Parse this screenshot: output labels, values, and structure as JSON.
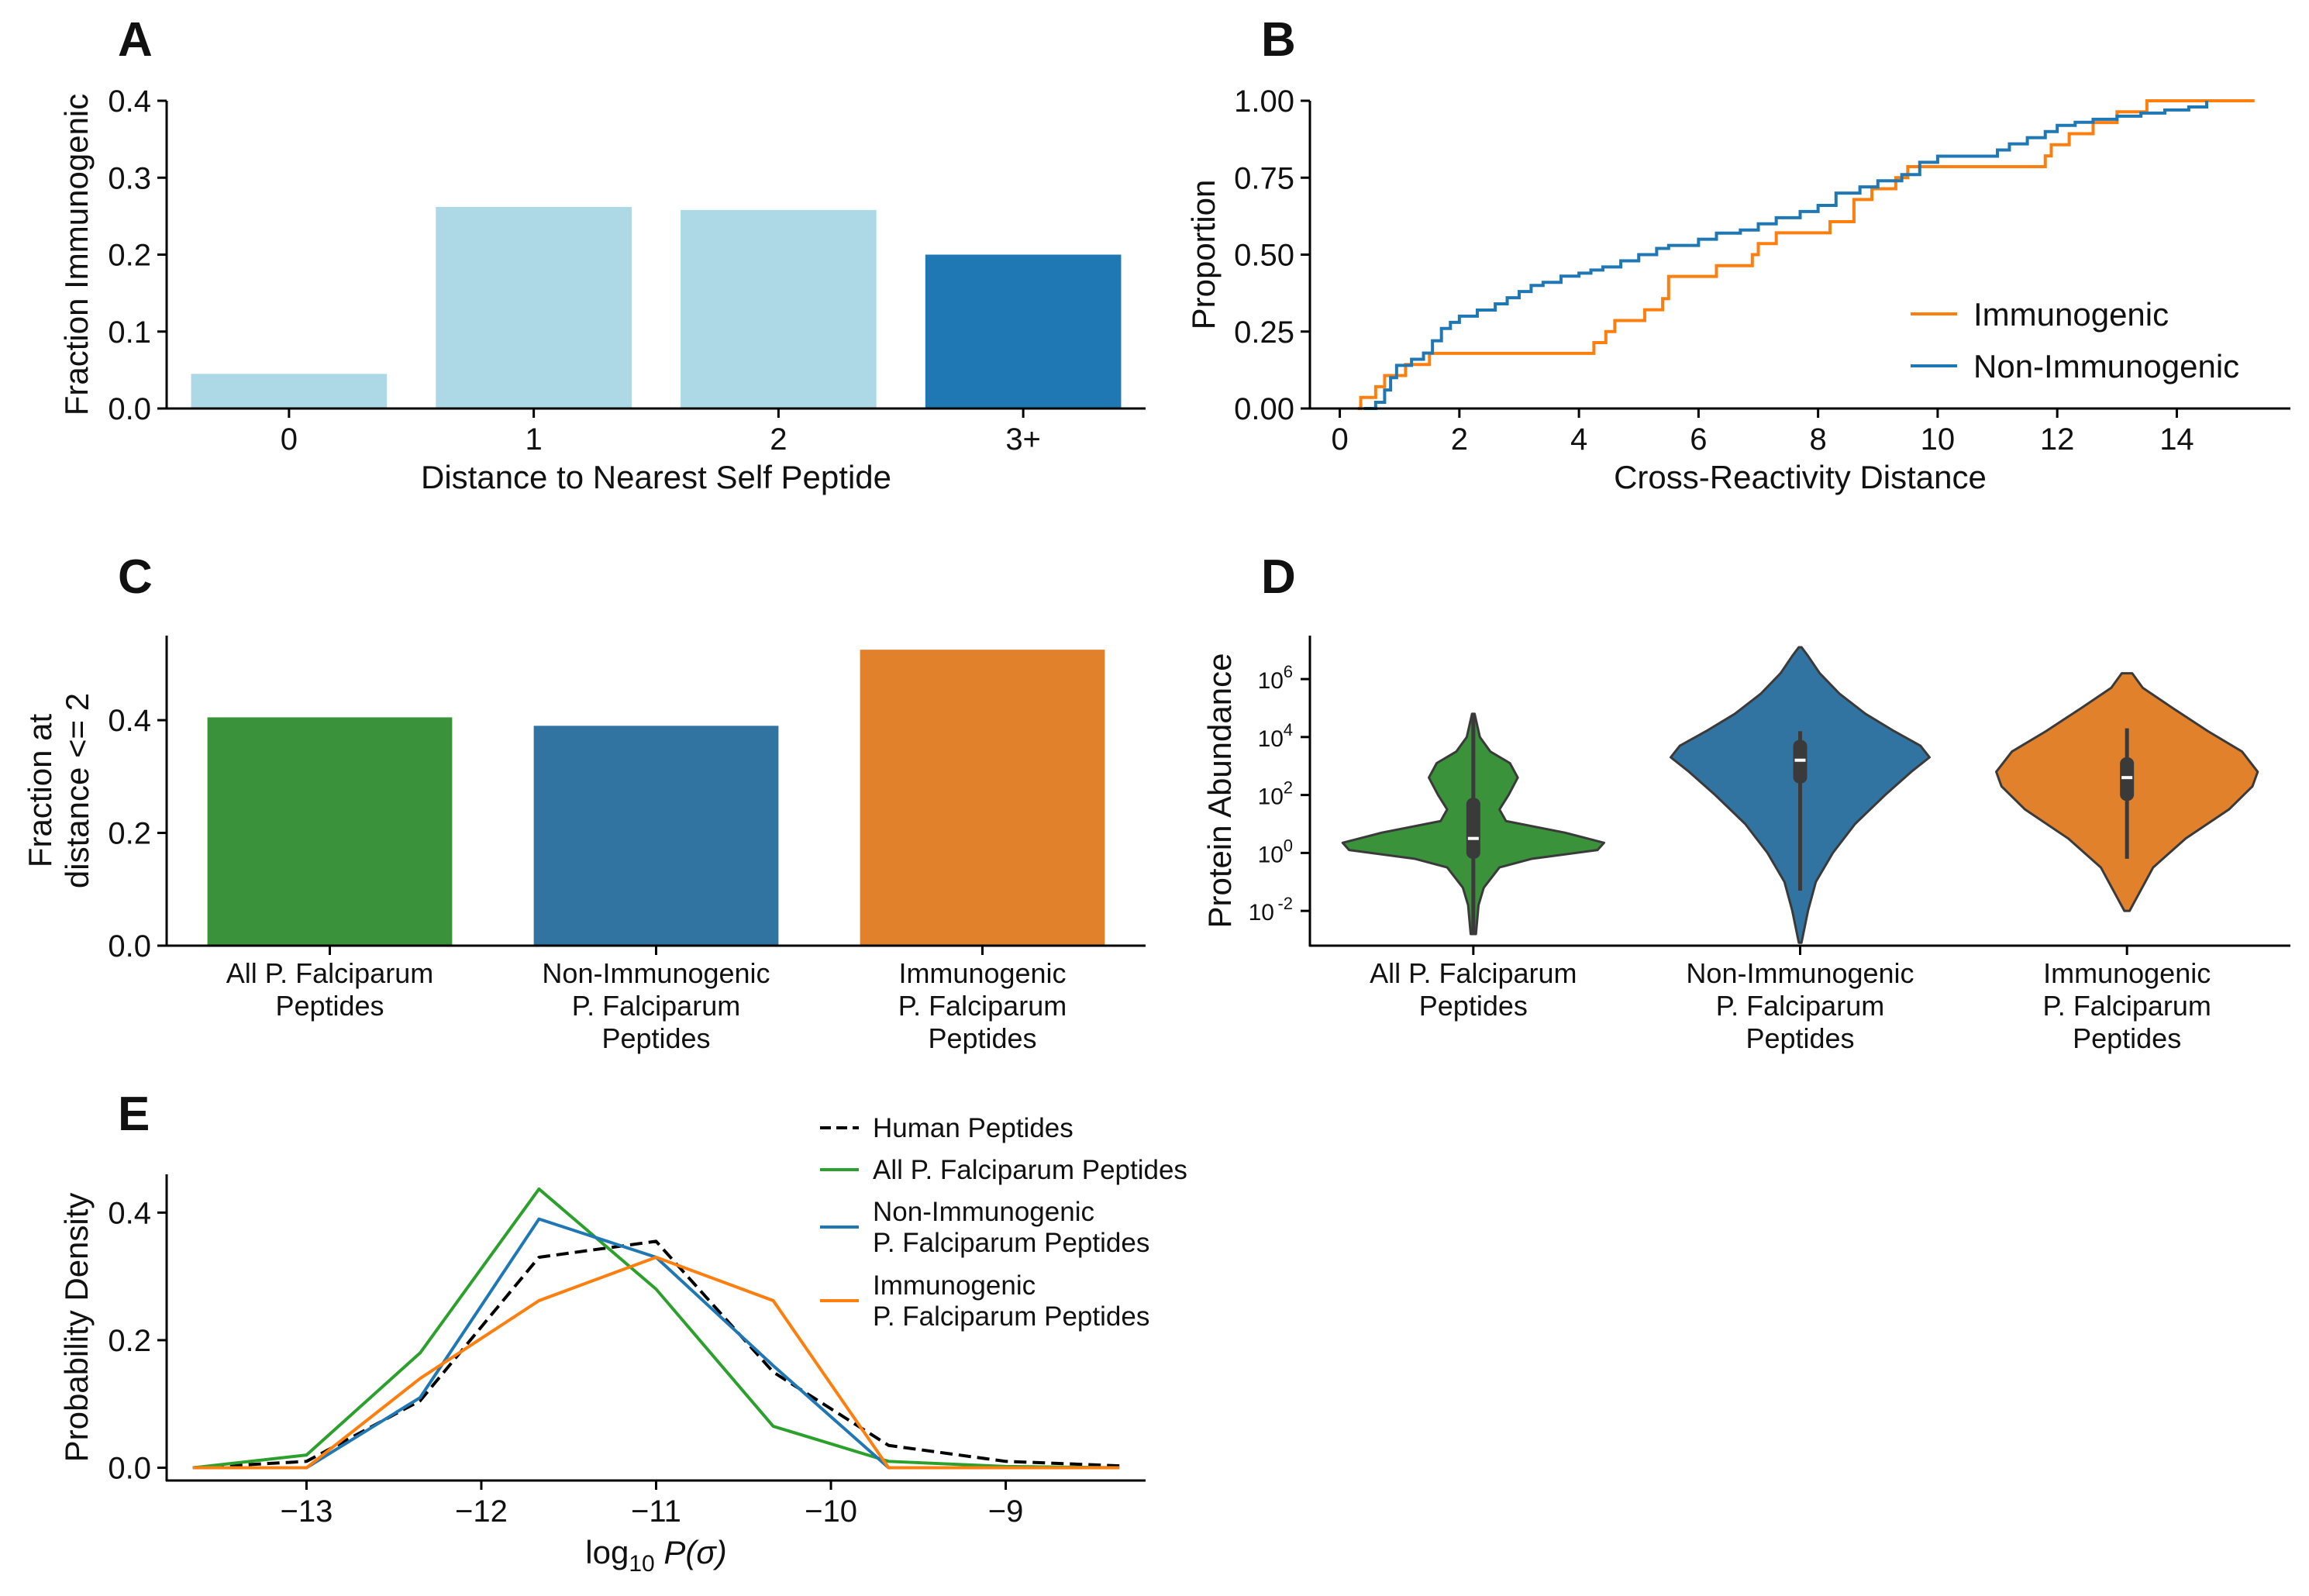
{
  "chart_data": [
    {
      "panel": "A",
      "type": "bar",
      "categories": [
        "0",
        "1",
        "2",
        "3+"
      ],
      "values": [
        0.045,
        0.262,
        0.258,
        0.2
      ],
      "colors": [
        "#add8e6",
        "#add8e6",
        "#add8e6",
        "#1f77b4"
      ],
      "xlabel": "Distance to Nearest Self Peptide",
      "ylabel": "Fraction Immunogenic",
      "ylim": [
        0,
        0.4
      ],
      "yticks": [
        0.0,
        0.1,
        0.2,
        0.3,
        0.4
      ],
      "ytick_labels": [
        "0.0",
        "0.1",
        "0.2",
        "0.3",
        "0.4"
      ]
    },
    {
      "panel": "B",
      "type": "line",
      "style": "step (empirical CDF)",
      "xlabel": "Cross-Reactivity Distance",
      "ylabel": "Proportion",
      "xlim": [
        -0.5,
        15.9
      ],
      "ylim": [
        0,
        1.0
      ],
      "xticks": [
        0,
        2,
        4,
        6,
        8,
        10,
        12,
        14
      ],
      "xtick_labels": [
        "0",
        "2",
        "4",
        "6",
        "8",
        "10",
        "12",
        "14"
      ],
      "yticks": [
        0.0,
        0.25,
        0.5,
        0.75,
        1.0
      ],
      "ytick_labels": [
        "0.00",
        "0.25",
        "0.50",
        "0.75",
        "1.00"
      ],
      "legend_position": "lower-right",
      "series": [
        {
          "name": "Immunogenic",
          "color": "#ff7f0e",
          "x": [
            0.3,
            0.35,
            0.6,
            0.75,
            1.1,
            1.5,
            4.1,
            4.25,
            4.45,
            4.6,
            5.1,
            5.4,
            5.5,
            6.3,
            6.9,
            7.0,
            7.3,
            8.2,
            8.6,
            8.9,
            9.3,
            9.5,
            11.8,
            11.9,
            12.2,
            12.6,
            13.0,
            13.5,
            15.3
          ],
          "y": [
            0.0,
            0.036,
            0.071,
            0.107,
            0.143,
            0.179,
            0.179,
            0.214,
            0.25,
            0.286,
            0.321,
            0.357,
            0.429,
            0.464,
            0.5,
            0.536,
            0.571,
            0.607,
            0.679,
            0.714,
            0.75,
            0.786,
            0.821,
            0.857,
            0.893,
            0.929,
            0.964,
            1.0,
            1.0
          ]
        },
        {
          "name": "Non-Immunogenic",
          "color": "#1f77b4",
          "x": [
            0.4,
            0.6,
            0.75,
            0.85,
            0.95,
            1.2,
            1.4,
            1.55,
            1.7,
            1.85,
            2.0,
            2.3,
            2.6,
            2.8,
            3.0,
            3.2,
            3.4,
            3.7,
            4.0,
            4.2,
            4.4,
            4.7,
            5.0,
            5.3,
            5.5,
            6.0,
            6.3,
            6.7,
            7.0,
            7.3,
            7.7,
            8.0,
            8.3,
            8.7,
            9.0,
            9.4,
            9.7,
            10.0,
            11.0,
            11.2,
            11.5,
            11.8,
            12.0,
            12.3,
            12.6,
            13.0,
            13.4,
            13.8,
            14.2,
            14.5
          ],
          "y": [
            0.0,
            0.02,
            0.06,
            0.1,
            0.14,
            0.16,
            0.18,
            0.22,
            0.26,
            0.28,
            0.3,
            0.32,
            0.34,
            0.36,
            0.38,
            0.4,
            0.41,
            0.43,
            0.44,
            0.45,
            0.46,
            0.48,
            0.5,
            0.52,
            0.53,
            0.55,
            0.57,
            0.58,
            0.6,
            0.62,
            0.64,
            0.66,
            0.7,
            0.72,
            0.74,
            0.76,
            0.8,
            0.82,
            0.84,
            0.86,
            0.88,
            0.9,
            0.92,
            0.93,
            0.94,
            0.95,
            0.96,
            0.97,
            0.98,
            1.0
          ]
        }
      ]
    },
    {
      "panel": "C",
      "type": "bar",
      "categories": [
        "All P. Falciparum\nPeptides",
        "Non-Immunogenic\nP. Falciparum\nPeptides",
        "Immunogenic\nP. Falciparum\nPeptides"
      ],
      "values": [
        0.405,
        0.39,
        0.525
      ],
      "colors": [
        "#3a923a",
        "#3274a1",
        "#e1812c"
      ],
      "xlabel": "",
      "ylabel": "Fraction at\ndistance <= 2",
      "ylim": [
        0,
        0.55
      ],
      "yticks": [
        0.0,
        0.2,
        0.4
      ],
      "ytick_labels": [
        "0.0",
        "0.2",
        "0.4"
      ]
    },
    {
      "panel": "D",
      "type": "violin",
      "categories": [
        "All P. Falciparum\nPeptides",
        "Non-Immunogenic\nP. Falciparum\nPeptides",
        "Immunogenic\nP. Falciparum\nPeptides"
      ],
      "colors": [
        "#3a923a",
        "#3274a1",
        "#e1812c"
      ],
      "ylabel": "Protein Abundance",
      "yscale": "log",
      "ylim_log10": [
        -3.2,
        7.5
      ],
      "ytick_log10": [
        -2,
        0,
        2,
        4,
        6
      ],
      "ytick_labels": [
        "10",
        "10",
        "10",
        "10",
        "10"
      ],
      "ytick_exponents": [
        "-2",
        "0",
        "2",
        "4",
        "6"
      ],
      "violins": [
        {
          "name": "All P. Falciparum Peptides",
          "min_log10": -2.8,
          "q1_log10": -0.2,
          "median_log10": 0.5,
          "q3_log10": 1.9,
          "max_log10": 4.8,
          "density": [
            [
              -2.8,
              0.02
            ],
            [
              -1.8,
              0.04
            ],
            [
              -1.2,
              0.08
            ],
            [
              -0.5,
              0.2
            ],
            [
              -0.2,
              0.45
            ],
            [
              0.1,
              0.95
            ],
            [
              0.35,
              1.0
            ],
            [
              0.7,
              0.7
            ],
            [
              1.1,
              0.25
            ],
            [
              1.5,
              0.2
            ],
            [
              2.0,
              0.27
            ],
            [
              2.6,
              0.34
            ],
            [
              3.1,
              0.28
            ],
            [
              3.5,
              0.13
            ],
            [
              4.0,
              0.05
            ],
            [
              4.8,
              0.01
            ]
          ]
        },
        {
          "name": "Non-Immunogenic P. Falciparum Peptides",
          "min_log10": -1.3,
          "q1_log10": 2.4,
          "median_log10": 3.2,
          "q3_log10": 3.9,
          "max_log10": 4.2,
          "density": [
            [
              -3.1,
              0.01
            ],
            [
              -2.0,
              0.06
            ],
            [
              -1.0,
              0.12
            ],
            [
              0.0,
              0.25
            ],
            [
              1.0,
              0.42
            ],
            [
              2.0,
              0.65
            ],
            [
              2.8,
              0.85
            ],
            [
              3.3,
              0.99
            ],
            [
              3.7,
              0.92
            ],
            [
              4.2,
              0.72
            ],
            [
              4.8,
              0.5
            ],
            [
              5.5,
              0.3
            ],
            [
              6.2,
              0.15
            ],
            [
              6.8,
              0.06
            ],
            [
              7.1,
              0.01
            ]
          ]
        },
        {
          "name": "Immunogenic P. Falciparum Peptides",
          "min_log10": -0.2,
          "q1_log10": 1.8,
          "median_log10": 2.6,
          "q3_log10": 3.3,
          "max_log10": 4.3,
          "density": [
            [
              -2.0,
              0.02
            ],
            [
              -1.5,
              0.08
            ],
            [
              -0.5,
              0.2
            ],
            [
              0.5,
              0.45
            ],
            [
              1.5,
              0.78
            ],
            [
              2.3,
              0.96
            ],
            [
              2.8,
              1.0
            ],
            [
              3.5,
              0.88
            ],
            [
              4.2,
              0.62
            ],
            [
              5.0,
              0.35
            ],
            [
              5.7,
              0.12
            ],
            [
              6.2,
              0.04
            ]
          ]
        }
      ]
    },
    {
      "panel": "E",
      "type": "line",
      "xlabel_main": "log",
      "xlabel_sub": "10",
      "xlabel_rest": " P(σ)",
      "ylabel": "Probability Density",
      "xlim": [
        -13.8,
        -8.2
      ],
      "ylim": [
        -0.02,
        0.46
      ],
      "xticks": [
        -13,
        -12,
        -11,
        -10,
        -9
      ],
      "xtick_labels": [
        "−13",
        "−12",
        "−11",
        "−10",
        "−9"
      ],
      "yticks": [
        0.0,
        0.2,
        0.4
      ],
      "ytick_labels": [
        "0.0",
        "0.2",
        "0.4"
      ],
      "legend_position": "upper-right-outside",
      "x": [
        -13.65,
        -13.0,
        -12.35,
        -11.67,
        -11.0,
        -10.33,
        -9.67,
        -9.0,
        -8.35
      ],
      "series": [
        {
          "name": "Human Peptides",
          "color": "#000000",
          "dashed": true,
          "values": [
            0.0,
            0.01,
            0.105,
            0.33,
            0.355,
            0.15,
            0.035,
            0.01,
            0.003
          ]
        },
        {
          "name": "All P. Falciparum Peptides",
          "color": "#2ca02c",
          "dashed": false,
          "values": [
            0.0,
            0.02,
            0.18,
            0.437,
            0.28,
            0.065,
            0.01,
            0.002,
            0.0
          ]
        },
        {
          "name": "Non-Immunogenic\nP. Falciparum Peptides",
          "color": "#1f77b4",
          "dashed": false,
          "values": [
            0.0,
            0.0,
            0.11,
            0.39,
            0.33,
            0.16,
            0.0,
            0.0,
            0.0
          ]
        },
        {
          "name": "Immunogenic\nP. Falciparum Peptides",
          "color": "#ff7f0e",
          "dashed": false,
          "values": [
            0.0,
            0.0,
            0.14,
            0.262,
            0.33,
            0.262,
            0.0,
            0.0,
            0.0
          ]
        }
      ]
    }
  ],
  "panel_letters": [
    "A",
    "B",
    "C",
    "D",
    "E"
  ]
}
